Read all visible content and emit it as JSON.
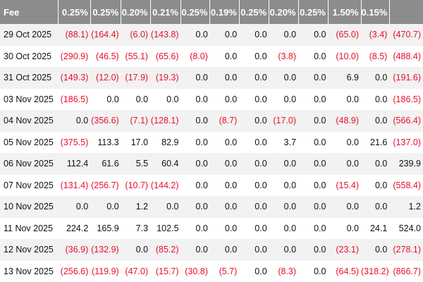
{
  "table": {
    "headers": [
      "Fee",
      "0.25%",
      "0.25%",
      "0.20%",
      "0.21%",
      "0.25%",
      "0.19%",
      "0.25%",
      "0.20%",
      "0.25%",
      "1.50%",
      "0.15%",
      ""
    ],
    "rows": [
      [
        "29 Oct 2025",
        "(88.1)",
        "(164.4)",
        "(6.0)",
        "(143.8)",
        "0.0",
        "0.0",
        "0.0",
        "0.0",
        "0.0",
        "(65.0)",
        "(3.4)",
        "(470.7)"
      ],
      [
        "30 Oct 2025",
        "(290.9)",
        "(46.5)",
        "(55.1)",
        "(65.6)",
        "(8.0)",
        "0.0",
        "0.0",
        "(3.8)",
        "0.0",
        "(10.0)",
        "(8.5)",
        "(488.4)"
      ],
      [
        "31 Oct 2025",
        "(149.3)",
        "(12.0)",
        "(17.9)",
        "(19.3)",
        "0.0",
        "0.0",
        "0.0",
        "0.0",
        "0.0",
        "6.9",
        "0.0",
        "(191.6)"
      ],
      [
        "03 Nov 2025",
        "(186.5)",
        "0.0",
        "0.0",
        "0.0",
        "0.0",
        "0.0",
        "0.0",
        "0.0",
        "0.0",
        "0.0",
        "0.0",
        "(186.5)"
      ],
      [
        "04 Nov 2025",
        "0.0",
        "(356.6)",
        "(7.1)",
        "(128.1)",
        "0.0",
        "(8.7)",
        "0.0",
        "(17.0)",
        "0.0",
        "(48.9)",
        "0.0",
        "(566.4)"
      ],
      [
        "05 Nov 2025",
        "(375.5)",
        "113.3",
        "17.0",
        "82.9",
        "0.0",
        "0.0",
        "0.0",
        "3.7",
        "0.0",
        "0.0",
        "21.6",
        "(137.0)"
      ],
      [
        "06 Nov 2025",
        "112.4",
        "61.6",
        "5.5",
        "60.4",
        "0.0",
        "0.0",
        "0.0",
        "0.0",
        "0.0",
        "0.0",
        "0.0",
        "239.9"
      ],
      [
        "07 Nov 2025",
        "(131.4)",
        "(256.7)",
        "(10.7)",
        "(144.2)",
        "0.0",
        "0.0",
        "0.0",
        "0.0",
        "0.0",
        "(15.4)",
        "0.0",
        "(558.4)"
      ],
      [
        "10 Nov 2025",
        "0.0",
        "0.0",
        "1.2",
        "0.0",
        "0.0",
        "0.0",
        "0.0",
        "0.0",
        "0.0",
        "0.0",
        "0.0",
        "1.2"
      ],
      [
        "11 Nov 2025",
        "224.2",
        "165.9",
        "7.3",
        "102.5",
        "0.0",
        "0.0",
        "0.0",
        "0.0",
        "0.0",
        "0.0",
        "24.1",
        "524.0"
      ],
      [
        "12 Nov 2025",
        "(36.9)",
        "(132.9)",
        "0.0",
        "(85.2)",
        "0.0",
        "0.0",
        "0.0",
        "0.0",
        "0.0",
        "(23.1)",
        "0.0",
        "(278.1)"
      ],
      [
        "13 Nov 2025",
        "(256.6)",
        "(119.9)",
        "(47.0)",
        "(15.7)",
        "(30.8)",
        "(5.7)",
        "0.0",
        "(8.3)",
        "0.0",
        "(64.5)",
        "(318.2)",
        "(866.7)"
      ]
    ]
  },
  "colors": {
    "header_bg": "#8c8c8c",
    "header_text": "#ffffff",
    "negative_text": "#e8102a",
    "row_stripe": "#f2f2f2"
  }
}
